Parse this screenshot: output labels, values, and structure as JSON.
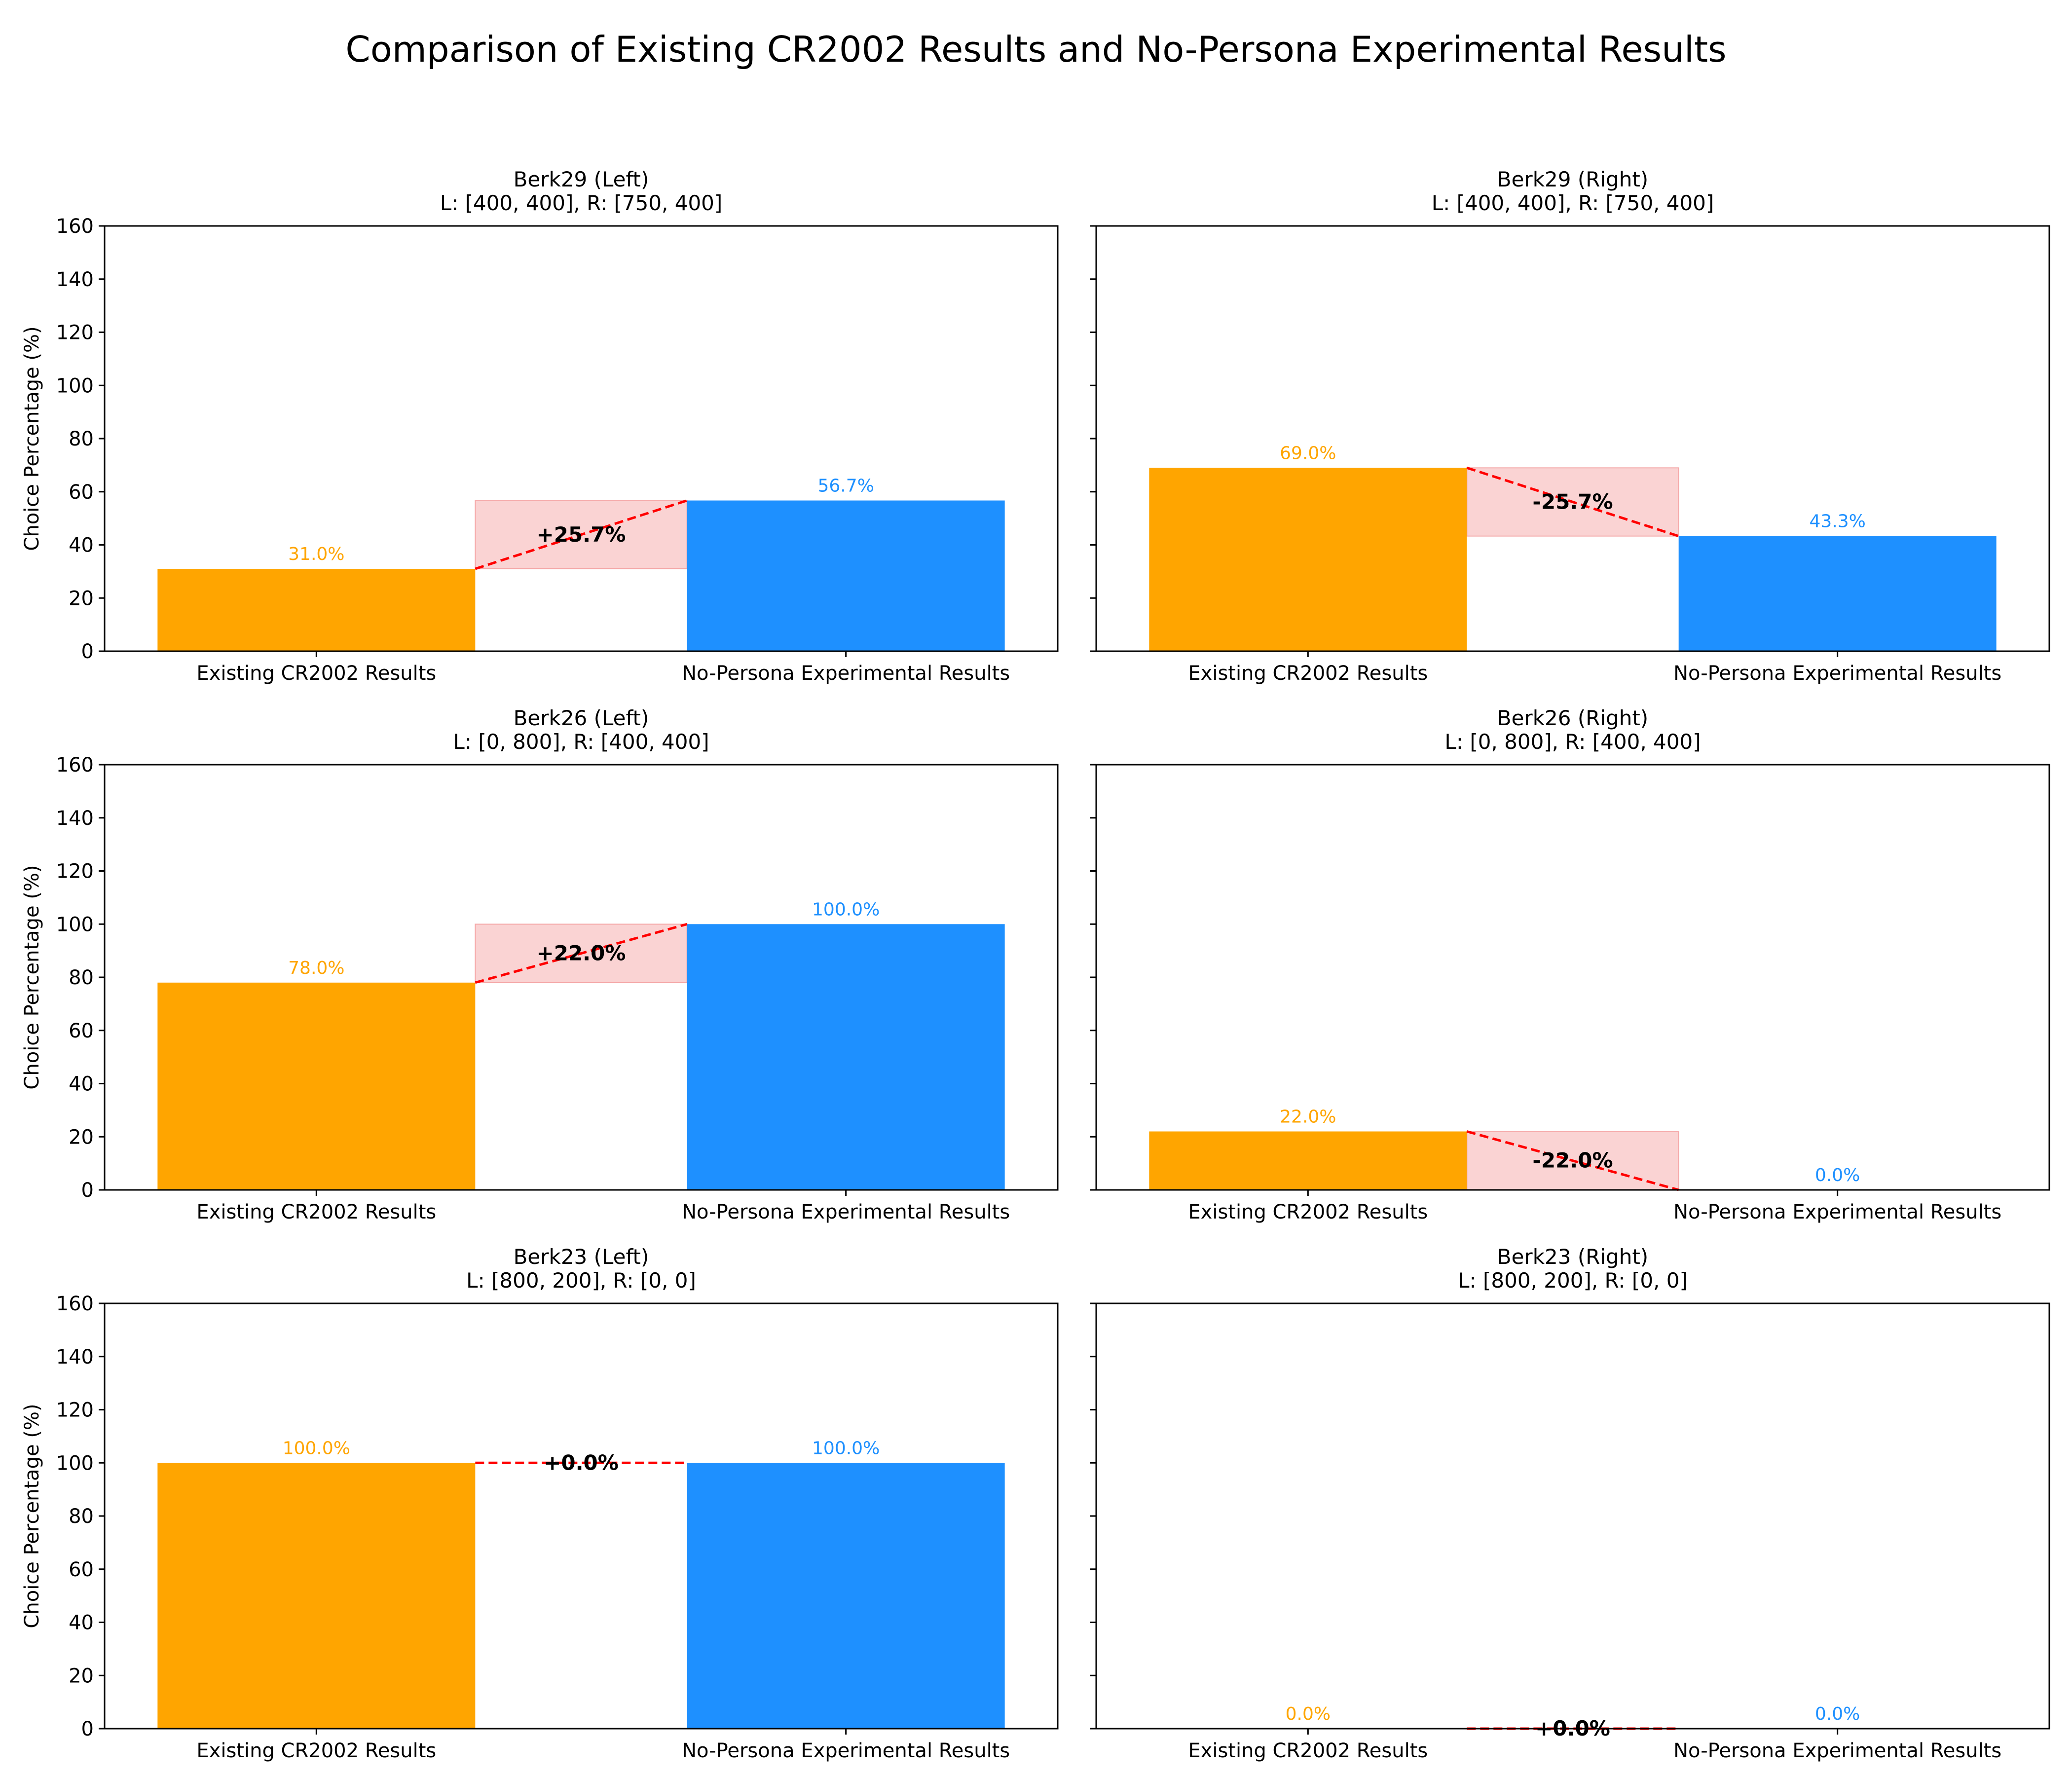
{
  "chart_data": {
    "type": "bar",
    "title": "Comparison of Existing CR2002 Results and No-Persona Experimental Results",
    "ylabel": "Choice Percentage (%)",
    "ylim": [
      0,
      160
    ],
    "yticks": [
      0,
      20,
      40,
      60,
      80,
      100,
      120,
      140,
      160
    ],
    "categories": [
      "Existing CR2002 Results",
      "No-Persona Experimental Results"
    ],
    "colors": {
      "existing": "#FFA500",
      "experimental": "#1E90FF",
      "diff_line": "#FF0000",
      "diff_band": "#F08080"
    },
    "grid": false,
    "legend": "none",
    "panels": [
      {
        "title": "Berk29 (Left)",
        "subtitle": "L: [400, 400], R: [750, 400]",
        "values": [
          31.0,
          56.7
        ],
        "value_labels": [
          "31.0%",
          "56.7%"
        ],
        "diff_label": "+25.7%"
      },
      {
        "title": "Berk29 (Right)",
        "subtitle": "L: [400, 400], R: [750, 400]",
        "values": [
          69.0,
          43.3
        ],
        "value_labels": [
          "69.0%",
          "43.3%"
        ],
        "diff_label": "-25.7%"
      },
      {
        "title": "Berk26 (Left)",
        "subtitle": "L: [0, 800], R: [400, 400]",
        "values": [
          78.0,
          100.0
        ],
        "value_labels": [
          "78.0%",
          "100.0%"
        ],
        "diff_label": "+22.0%"
      },
      {
        "title": "Berk26 (Right)",
        "subtitle": "L: [0, 800], R: [400, 400]",
        "values": [
          22.0,
          0.0
        ],
        "value_labels": [
          "22.0%",
          "0.0%"
        ],
        "diff_label": "-22.0%"
      },
      {
        "title": "Berk23 (Left)",
        "subtitle": "L: [800, 200], R: [0, 0]",
        "values": [
          100.0,
          100.0
        ],
        "value_labels": [
          "100.0%",
          "100.0%"
        ],
        "diff_label": "+0.0%"
      },
      {
        "title": "Berk23 (Right)",
        "subtitle": "L: [800, 200], R: [0, 0]",
        "values": [
          0.0,
          0.0
        ],
        "value_labels": [
          "0.0%",
          "0.0%"
        ],
        "diff_label": "+0.0%"
      }
    ]
  }
}
